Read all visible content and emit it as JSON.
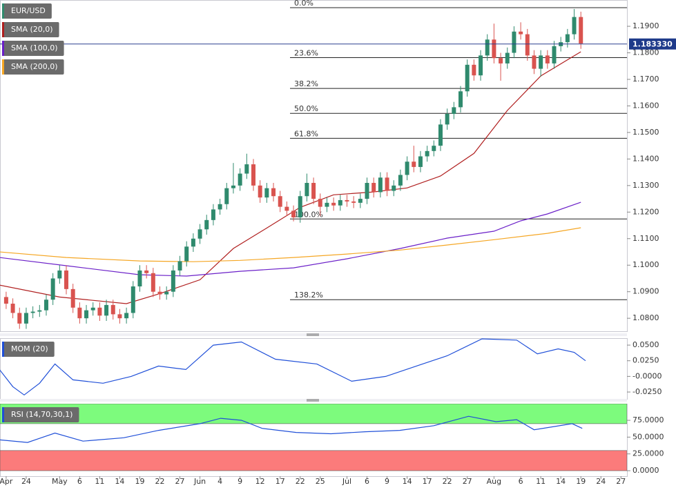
{
  "chart_data": [
    {
      "type": "candlestick",
      "title": "EUR/USD",
      "xlim": [
        0.08,
        93.9
      ],
      "ylim": [
        1.0751,
        1.1999
      ],
      "yticks": [
        {
          "value": 1.19,
          "label": "1.1900"
        },
        {
          "value": 1.18,
          "label": "1.1800"
        },
        {
          "value": 1.17,
          "label": "1.1700"
        },
        {
          "value": 1.16,
          "label": "1.1600"
        },
        {
          "value": 1.15,
          "label": "1.1500"
        },
        {
          "value": 1.14,
          "label": "1.1400"
        },
        {
          "value": 1.13,
          "label": "1.1300"
        },
        {
          "value": 1.12,
          "label": "1.1200"
        },
        {
          "value": 1.11,
          "label": "1.1100"
        },
        {
          "value": 1.1,
          "label": "1.1000"
        },
        {
          "value": 1.09,
          "label": "1.0900"
        },
        {
          "value": 1.08,
          "label": "1.0800"
        }
      ],
      "candles": {
        "up_color": "#2f8a6d",
        "down_color": "#d9534f",
        "x": [
          1,
          2,
          3,
          4,
          5,
          6,
          7,
          8,
          9,
          10,
          11,
          12,
          13,
          14,
          15,
          16,
          17,
          18,
          19,
          20,
          21,
          22,
          23,
          24,
          25,
          26,
          27,
          28,
          29,
          30,
          31,
          32,
          33,
          34,
          35,
          36,
          37,
          38,
          39,
          40,
          41,
          42,
          43,
          44,
          45,
          46,
          47,
          48,
          49,
          50,
          51,
          52,
          53,
          54,
          55,
          56,
          57,
          58,
          59,
          60,
          61,
          62,
          63,
          64,
          65,
          66,
          67,
          68,
          69,
          70,
          71,
          72,
          73,
          74,
          75,
          76,
          77,
          78,
          79,
          80,
          81,
          82,
          83,
          84,
          85,
          86,
          87
        ],
        "open": [
          1.088,
          1.0855,
          1.082,
          1.078,
          1.082,
          1.0825,
          1.083,
          1.087,
          1.095,
          1.098,
          1.091,
          1.084,
          1.08,
          1.083,
          1.084,
          1.081,
          1.085,
          1.0815,
          1.08,
          1.082,
          1.092,
          1.098,
          1.097,
          1.09,
          1.089,
          1.09,
          1.098,
          1.1015,
          1.107,
          1.11,
          1.1135,
          1.117,
          1.121,
          1.123,
          1.129,
          1.13,
          1.1345,
          1.138,
          1.13,
          1.1255,
          1.129,
          1.126,
          1.122,
          1.1205,
          1.118,
          1.126,
          1.131,
          1.125,
          1.122,
          1.1235,
          1.1225,
          1.1245,
          1.124,
          1.1235,
          1.125,
          1.131,
          1.1275,
          1.133,
          1.128,
          1.13,
          1.134,
          1.139,
          1.137,
          1.141,
          1.143,
          1.145,
          1.153,
          1.157,
          1.1595,
          1.1655,
          1.1755,
          1.1715,
          1.179,
          1.185,
          1.178,
          1.176,
          1.18,
          1.188,
          1.187,
          1.179,
          1.174,
          1.179,
          1.176,
          1.1825,
          1.184,
          1.187,
          1.1935
        ],
        "high": [
          1.09,
          1.0875,
          1.084,
          1.084,
          1.0845,
          1.085,
          1.089,
          1.097,
          1.1,
          1.1,
          1.093,
          1.086,
          1.085,
          1.086,
          1.086,
          1.087,
          1.087,
          1.0835,
          1.084,
          1.094,
          1.1,
          1.1,
          1.099,
          1.092,
          1.092,
          1.1,
          1.1035,
          1.109,
          1.112,
          1.1155,
          1.119,
          1.123,
          1.125,
          1.131,
          1.1385,
          1.1365,
          1.142,
          1.14,
          1.132,
          1.131,
          1.131,
          1.128,
          1.124,
          1.1225,
          1.128,
          1.1345,
          1.133,
          1.127,
          1.1255,
          1.1255,
          1.1265,
          1.1265,
          1.126,
          1.127,
          1.133,
          1.133,
          1.135,
          1.135,
          1.132,
          1.136,
          1.141,
          1.145,
          1.143,
          1.145,
          1.147,
          1.155,
          1.159,
          1.1615,
          1.1675,
          1.1775,
          1.1775,
          1.181,
          1.187,
          1.191,
          1.18,
          1.182,
          1.19,
          1.1915,
          1.189,
          1.181,
          1.181,
          1.181,
          1.1845,
          1.186,
          1.189,
          1.1965,
          1.1955
        ],
        "low": [
          1.0835,
          1.08,
          1.076,
          1.076,
          1.08,
          1.0805,
          1.081,
          1.085,
          1.093,
          1.089,
          1.082,
          1.078,
          1.078,
          1.081,
          1.079,
          1.079,
          1.0795,
          1.078,
          1.078,
          1.08,
          1.09,
          1.095,
          1.088,
          1.087,
          1.087,
          1.088,
          1.096,
          1.0995,
          1.105,
          1.108,
          1.1115,
          1.115,
          1.119,
          1.121,
          1.127,
          1.128,
          1.1325,
          1.128,
          1.1235,
          1.1235,
          1.124,
          1.12,
          1.1185,
          1.1165,
          1.116,
          1.124,
          1.123,
          1.1185,
          1.12,
          1.1205,
          1.1205,
          1.122,
          1.1215,
          1.1215,
          1.123,
          1.1255,
          1.1255,
          1.126,
          1.126,
          1.128,
          1.132,
          1.135,
          1.135,
          1.139,
          1.141,
          1.143,
          1.151,
          1.155,
          1.1575,
          1.1635,
          1.1695,
          1.1695,
          1.177,
          1.176,
          1.1695,
          1.174,
          1.178,
          1.185,
          1.177,
          1.172,
          1.171,
          1.174,
          1.174,
          1.1805,
          1.182,
          1.185,
          1.1815
        ],
        "close": [
          1.0855,
          1.082,
          1.078,
          1.082,
          1.0825,
          1.083,
          1.087,
          1.095,
          1.098,
          1.091,
          1.084,
          1.08,
          1.083,
          1.084,
          1.081,
          1.085,
          1.0815,
          1.08,
          1.082,
          1.092,
          1.098,
          1.097,
          1.09,
          1.089,
          1.09,
          1.098,
          1.1015,
          1.107,
          1.11,
          1.1135,
          1.117,
          1.121,
          1.123,
          1.129,
          1.13,
          1.1345,
          1.138,
          1.13,
          1.1255,
          1.129,
          1.126,
          1.122,
          1.1205,
          1.118,
          1.126,
          1.131,
          1.125,
          1.122,
          1.1235,
          1.1225,
          1.1245,
          1.124,
          1.1235,
          1.125,
          1.131,
          1.1275,
          1.133,
          1.128,
          1.13,
          1.134,
          1.139,
          1.137,
          1.141,
          1.143,
          1.145,
          1.153,
          1.157,
          1.1595,
          1.1655,
          1.1755,
          1.1715,
          1.179,
          1.185,
          1.178,
          1.176,
          1.18,
          1.188,
          1.187,
          1.179,
          1.174,
          1.179,
          1.176,
          1.1825,
          1.184,
          1.187,
          1.1935,
          1.1835
        ]
      },
      "series": [
        {
          "name": "SMA (20,0)",
          "color": "#b01e1e",
          "x": [
            0,
            9,
            19,
            24,
            30,
            35,
            40,
            45,
            50,
            56,
            61,
            66,
            71,
            76,
            81,
            87
          ],
          "values": [
            1.0925,
            1.088,
            1.0855,
            1.0893,
            1.0945,
            1.1063,
            1.114,
            1.1218,
            1.1265,
            1.1276,
            1.1291,
            1.1336,
            1.1421,
            1.1583,
            1.1713,
            1.1804
          ]
        },
        {
          "name": "SMA (100,0)",
          "color": "#6a1fc8",
          "x": [
            0,
            10,
            21,
            28,
            36,
            44,
            52,
            60,
            67,
            74,
            78,
            82,
            87
          ],
          "values": [
            1.1029,
            1.0998,
            1.0964,
            1.0959,
            1.0977,
            1.099,
            1.1024,
            1.1063,
            1.1102,
            1.1128,
            1.1167,
            1.1193,
            1.1237
          ]
        },
        {
          "name": "SMA (200,0)",
          "color": "#f5a623",
          "x": [
            0,
            10,
            21,
            29,
            36,
            44,
            52,
            60,
            67,
            74,
            82,
            87
          ],
          "values": [
            1.105,
            1.1029,
            1.1016,
            1.1013,
            1.1018,
            1.1029,
            1.1042,
            1.1057,
            1.1076,
            1.1096,
            1.112,
            1.1141
          ]
        }
      ],
      "fib_levels": [
        {
          "value": 1.197,
          "label": "0.0%"
        },
        {
          "value": 1.1782,
          "label": "23.6%"
        },
        {
          "value": 1.1666,
          "label": "38.2%"
        },
        {
          "value": 1.1572,
          "label": "50.0%"
        },
        {
          "value": 1.1478,
          "label": "61.8%"
        },
        {
          "value": 1.1174,
          "label": "100.0%"
        },
        {
          "value": 1.087,
          "label": "138.2%"
        }
      ],
      "last_price": {
        "value": 1.18333,
        "label": "1.183330"
      }
    },
    {
      "type": "line",
      "xlim": [
        0.08,
        93.9
      ],
      "ylim": [
        -0.036,
        0.0611
      ],
      "yticks": [
        {
          "value": 0.05,
          "label": "0.0500"
        },
        {
          "value": 0.025,
          "label": "0.0250"
        },
        {
          "value": 0,
          "label": "-0.0000"
        },
        {
          "value": -0.025,
          "label": "-0.0250"
        }
      ],
      "series": [
        {
          "name": "MOM (20)",
          "color": "#1f4fd8",
          "x": [
            0,
            2,
            3.7,
            6,
            8.3,
            11,
            15.5,
            19.7,
            23.8,
            27.9,
            32,
            36.2,
            41.3,
            47.5,
            52.7,
            57.8,
            63,
            67,
            72.2,
            77.4,
            80.5,
            83.6,
            86,
            87.7
          ],
          "values": [
            0.011,
            -0.0165,
            -0.0297,
            -0.011,
            0.0198,
            -0.0055,
            -0.011,
            0,
            0.0165,
            0.011,
            0.05,
            0.055,
            0.0275,
            0.0198,
            -0.0077,
            0,
            0.0187,
            0.033,
            0.06,
            0.058,
            0.036,
            0.044,
            0.0385,
            0.025
          ]
        }
      ]
    },
    {
      "type": "line",
      "xlim": [
        0.08,
        93.9
      ],
      "ylim": [
        -8.2,
        99.7
      ],
      "yticks": [
        {
          "value": 75,
          "label": "75.0000"
        },
        {
          "value": 50,
          "label": "50.0000"
        },
        {
          "value": 25,
          "label": "25.0000"
        },
        {
          "value": 0,
          "label": "0.0000"
        }
      ],
      "bands": [
        {
          "from": 70,
          "to": 99.7,
          "color": "#7dfb7d"
        },
        {
          "from": 0,
          "to": 30,
          "color": "#fb7b7b"
        }
      ],
      "series": [
        {
          "name": "RSI (14,70,30,1)",
          "color": "#1f4fd8",
          "x": [
            0,
            4.2,
            8.3,
            12.5,
            18.6,
            23.8,
            30,
            33.1,
            36.2,
            39.3,
            44.4,
            49.6,
            54.7,
            59.9,
            65,
            70.2,
            74.3,
            77.4,
            80,
            85.7,
            87.2
          ],
          "values": [
            46,
            42,
            56,
            44,
            49,
            60,
            70,
            78,
            75,
            63,
            57,
            55,
            58,
            60,
            67,
            81,
            73,
            76,
            61,
            70,
            63
          ]
        }
      ],
      "xticks": [
        {
          "value": 1,
          "label": "Apr"
        },
        {
          "value": 4,
          "label": "24"
        },
        {
          "value": 9,
          "label": "May"
        },
        {
          "value": 12,
          "label": "6"
        },
        {
          "value": 15,
          "label": "11"
        },
        {
          "value": 18,
          "label": "14"
        },
        {
          "value": 21,
          "label": "19"
        },
        {
          "value": 24,
          "label": "22"
        },
        {
          "value": 27,
          "label": "27"
        },
        {
          "value": 30,
          "label": "Jun"
        },
        {
          "value": 33,
          "label": "4"
        },
        {
          "value": 36,
          "label": "9"
        },
        {
          "value": 39,
          "label": "12"
        },
        {
          "value": 42,
          "label": "17"
        },
        {
          "value": 45,
          "label": "22"
        },
        {
          "value": 48,
          "label": "25"
        },
        {
          "value": 52,
          "label": "Jul"
        },
        {
          "value": 55,
          "label": "6"
        },
        {
          "value": 58,
          "label": "9"
        },
        {
          "value": 61,
          "label": "14"
        },
        {
          "value": 64,
          "label": "17"
        },
        {
          "value": 67,
          "label": "22"
        },
        {
          "value": 70,
          "label": "27"
        },
        {
          "value": 74,
          "label": "Aug"
        },
        {
          "value": 78,
          "label": "6"
        },
        {
          "value": 81,
          "label": "11"
        },
        {
          "value": 84,
          "label": "14"
        },
        {
          "value": 87,
          "label": "19"
        },
        {
          "value": 90,
          "label": "24"
        },
        {
          "value": 93,
          "label": "27"
        }
      ]
    }
  ]
}
